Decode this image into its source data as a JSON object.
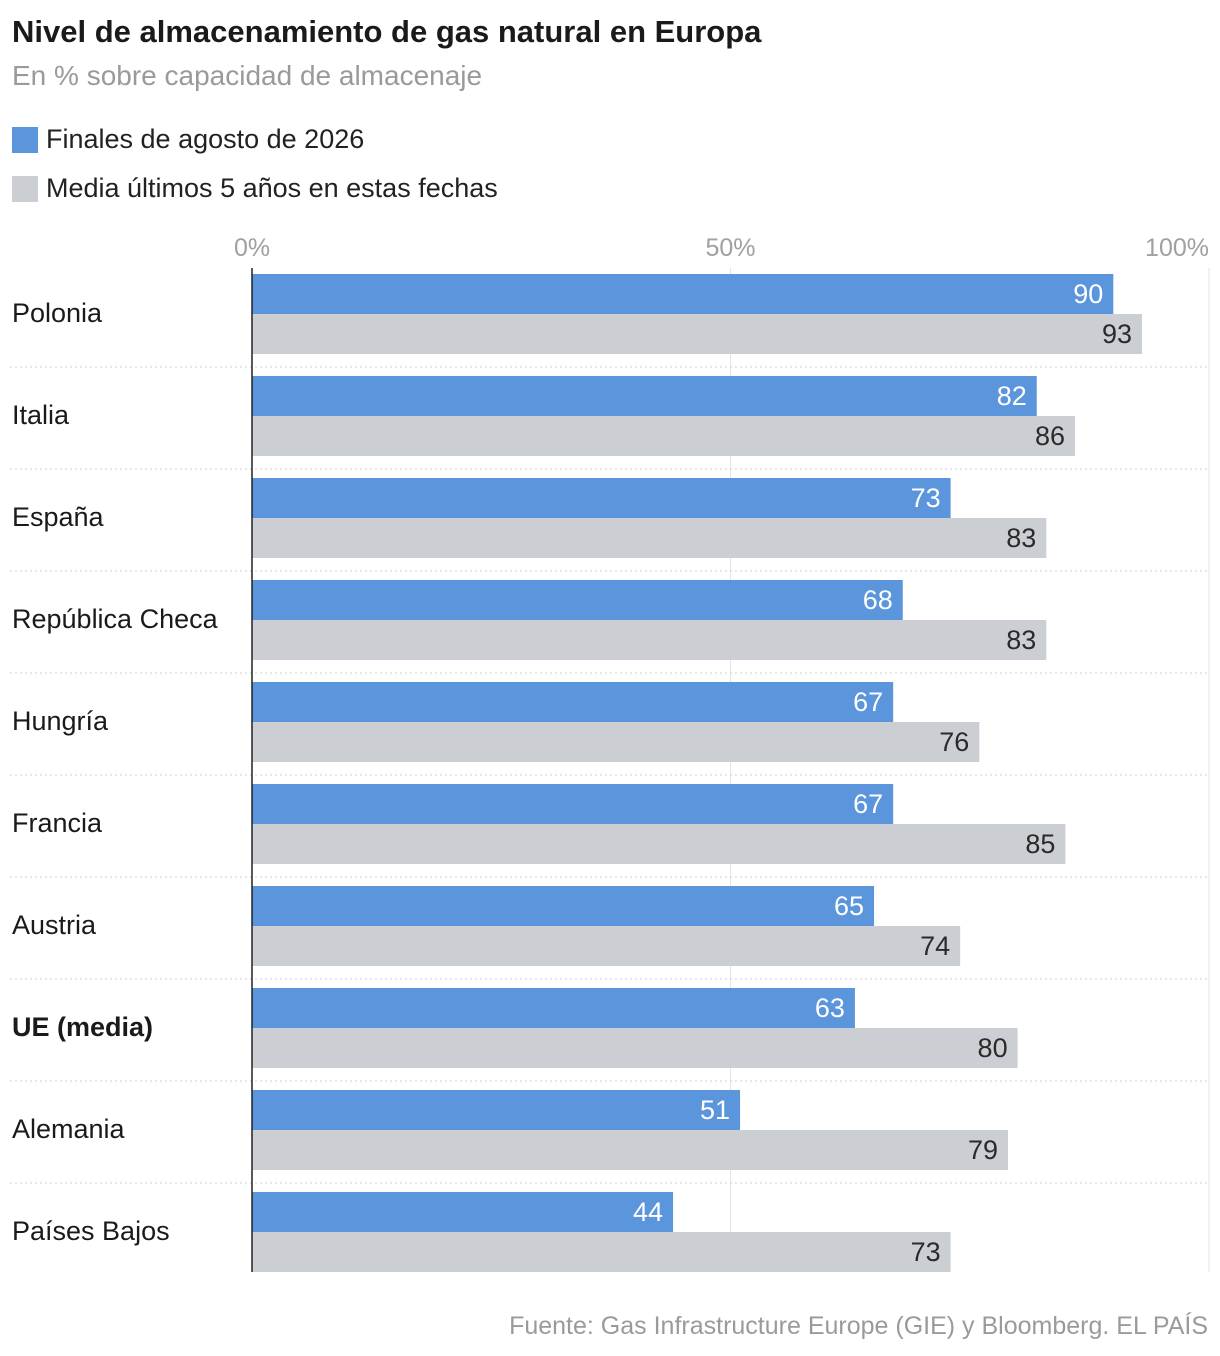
{
  "chart_data": {
    "type": "bar",
    "orientation": "horizontal",
    "title": "Nivel de almacenamiento de gas natural en Europa",
    "subtitle": "En % sobre capacidad de almacenaje",
    "categories": [
      "Polonia",
      "Italia",
      "España",
      "República Checa",
      "Hungría",
      "Francia",
      "Austria",
      "UE (media)",
      "Alemania",
      "Países Bajos"
    ],
    "highlight_category": "UE (media)",
    "series": [
      {
        "name": "Finales de agosto de 2026",
        "color": "#5b95dc",
        "values": [
          90,
          82,
          73,
          68,
          67,
          67,
          65,
          63,
          51,
          44
        ]
      },
      {
        "name": "Media últimos 5 años en estas fechas",
        "color": "#cbcfd3",
        "values": [
          93,
          86,
          83,
          83,
          76,
          85,
          74,
          80,
          79,
          73
        ]
      }
    ],
    "xlim": [
      0,
      100
    ],
    "x_ticks": [
      0,
      50,
      100
    ],
    "x_tick_labels": [
      "0%",
      "50%",
      "100%"
    ],
    "xlabel": "",
    "ylabel": "",
    "grid": true,
    "legend_position": "top-left",
    "source": "Fuente: Gas Infrastructure Europe (GIE) y Bloomberg. EL PAÍS"
  }
}
